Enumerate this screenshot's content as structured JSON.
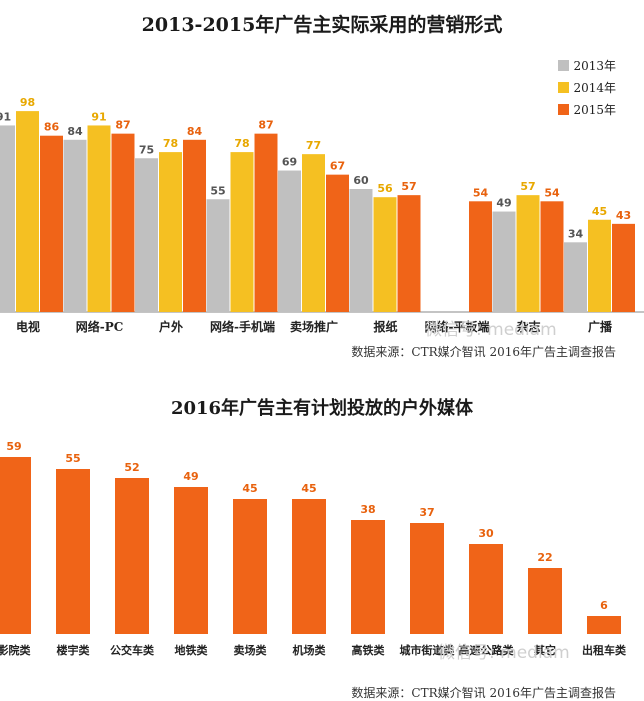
{
  "watermark": "微信号: mediam",
  "chart_data": [
    {
      "type": "bar",
      "title": "2013-2015年广告主实际采用的营销形式",
      "categories": [
        "电视",
        "网络-PC",
        "户外",
        "网络-手机端",
        "卖场推广",
        "报纸",
        "网络-平板端",
        "杂志",
        "广播"
      ],
      "series": [
        {
          "name": "2013年",
          "color": "#c0c0c0",
          "values": [
            91,
            84,
            75,
            55,
            69,
            60,
            null,
            49,
            34
          ]
        },
        {
          "name": "2014年",
          "color": "#f5c022",
          "values": [
            98,
            91,
            78,
            78,
            77,
            56,
            null,
            57,
            45
          ]
        },
        {
          "name": "2015年",
          "color": "#f06418",
          "values": [
            86,
            87,
            84,
            87,
            67,
            57,
            54,
            54,
            43
          ]
        }
      ],
      "label_colors": [
        "#555555",
        "#e8a800",
        "#e8620e"
      ],
      "ylim": [
        0,
        100
      ],
      "grid": false,
      "legend": "top-right",
      "source": "数据来源：CTR媒介智讯 2016年广告主调查报告"
    },
    {
      "type": "bar",
      "title": "2016年广告主有计划投放的户外媒体",
      "categories": [
        "影院类",
        "楼宇类",
        "公交车类",
        "地铁类",
        "卖场类",
        "机场类",
        "高铁类",
        "城市街道类",
        "高速公路类",
        "其它",
        "出租车类"
      ],
      "series": [
        {
          "name": "",
          "color": "#f06418",
          "values": [
            59,
            55,
            52,
            49,
            45,
            45,
            38,
            37,
            30,
            22,
            6
          ]
        }
      ],
      "label_color": "#e8620e",
      "ylim": [
        0,
        62
      ],
      "grid": false,
      "legend": "none",
      "source": "数据来源：CTR媒介智讯 2016年广告主调查报告"
    }
  ]
}
